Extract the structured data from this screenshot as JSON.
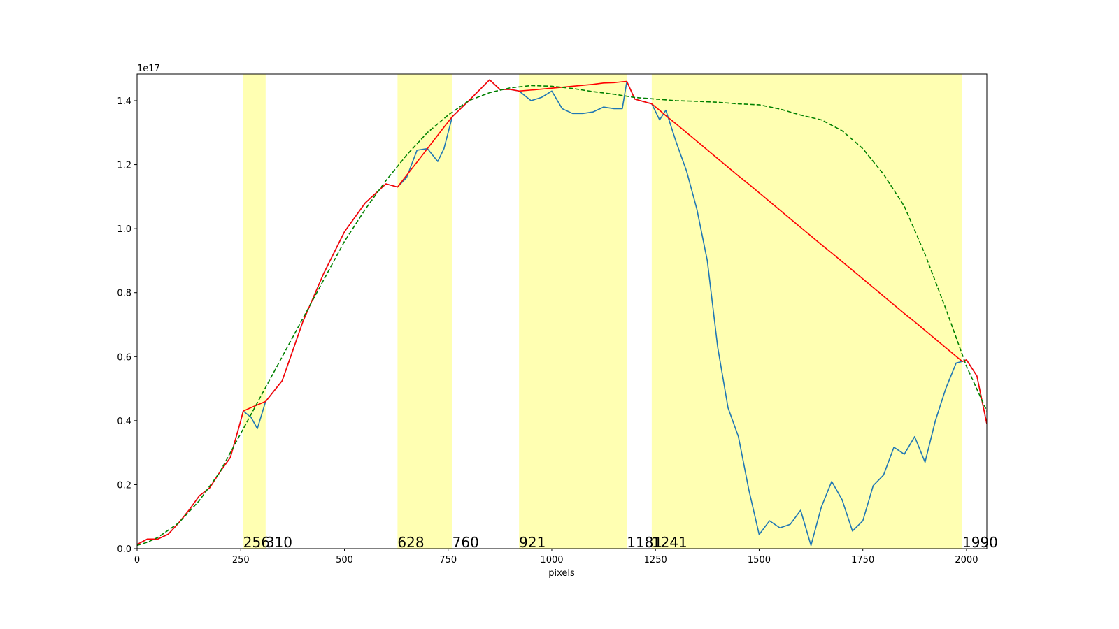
{
  "chart_data": {
    "type": "line",
    "xlabel": "pixels",
    "offset_label": "1e17",
    "xlim": [
      0,
      2049
    ],
    "ylim": [
      0,
      1.483
    ],
    "xticks": [
      0,
      250,
      500,
      750,
      1000,
      1250,
      1500,
      1750,
      2000
    ],
    "yticks": [
      {
        "value": 0,
        "label": "0.0"
      },
      0.2,
      0.4,
      0.6,
      0.8,
      {
        "value": 1,
        "label": "1.0"
      },
      1.2,
      1.4
    ],
    "span_color": "#ffff00",
    "spans": [
      [
        256,
        310
      ],
      [
        628,
        760
      ],
      [
        921,
        1181
      ],
      [
        1241,
        1990
      ]
    ],
    "series": [
      {
        "color": "#1f77b4",
        "dash": false,
        "x": [
          0,
          25,
          50,
          75,
          100,
          125,
          150,
          175,
          200,
          225,
          250,
          256,
          275,
          290,
          310,
          350,
          400,
          450,
          500,
          550,
          600,
          628,
          650,
          675,
          700,
          725,
          740,
          760,
          800,
          850,
          875,
          900,
          921,
          950,
          975,
          1000,
          1025,
          1050,
          1075,
          1100,
          1125,
          1150,
          1170,
          1181,
          1200,
          1241,
          1260,
          1275,
          1300,
          1325,
          1350,
          1375,
          1400,
          1425,
          1450,
          1475,
          1500,
          1525,
          1550,
          1575,
          1600,
          1625,
          1650,
          1675,
          1700,
          1725,
          1750,
          1775,
          1800,
          1825,
          1850,
          1875,
          1900,
          1925,
          1950,
          1975,
          1990,
          2000,
          2025,
          2049
        ],
        "values": [
          0.013,
          0.03,
          0.03,
          0.045,
          0.08,
          0.12,
          0.165,
          0.19,
          0.24,
          0.285,
          0.4,
          0.43,
          0.41,
          0.375,
          0.46,
          0.525,
          0.71,
          0.86,
          0.99,
          1.08,
          1.14,
          1.13,
          1.16,
          1.245,
          1.25,
          1.21,
          1.25,
          1.35,
          1.4,
          1.465,
          1.435,
          1.435,
          1.43,
          1.4,
          1.41,
          1.43,
          1.375,
          1.36,
          1.36,
          1.365,
          1.38,
          1.375,
          1.375,
          1.46,
          1.405,
          1.39,
          1.34,
          1.37,
          1.27,
          1.18,
          1.06,
          0.9,
          0.63,
          0.44,
          0.35,
          0.185,
          0.044,
          0.087,
          0.065,
          0.076,
          0.12,
          0.01,
          0.13,
          0.21,
          0.153,
          0.055,
          0.087,
          0.197,
          0.23,
          0.317,
          0.295,
          0.35,
          0.27,
          0.4,
          0.5,
          0.58,
          0.585,
          0.59,
          0.54,
          0.39
        ]
      },
      {
        "color": "#ff0000",
        "dash": false,
        "x": [
          0,
          25,
          50,
          75,
          100,
          125,
          150,
          175,
          200,
          225,
          250,
          256,
          275,
          290,
          310,
          350,
          400,
          450,
          500,
          550,
          600,
          628,
          650,
          675,
          700,
          725,
          740,
          760,
          800,
          850,
          875,
          900,
          921,
          950,
          975,
          1000,
          1025,
          1050,
          1075,
          1100,
          1125,
          1150,
          1170,
          1181,
          1200,
          1241,
          1260,
          1275,
          1300,
          1325,
          1350,
          1375,
          1400,
          1425,
          1450,
          1475,
          1500,
          1525,
          1550,
          1575,
          1600,
          1625,
          1650,
          1675,
          1700,
          1725,
          1750,
          1775,
          1800,
          1825,
          1850,
          1875,
          1900,
          1925,
          1950,
          1975,
          1990,
          2000,
          2025,
          2049
        ],
        "values": [
          0.013,
          0.03,
          0.03,
          0.045,
          0.08,
          0.12,
          0.165,
          0.19,
          0.24,
          0.285,
          0.4,
          0.43,
          0.441,
          0.449,
          0.46,
          0.525,
          0.71,
          0.86,
          0.99,
          1.08,
          1.14,
          1.13,
          1.167,
          1.208,
          1.25,
          1.292,
          1.317,
          1.35,
          1.4,
          1.465,
          1.435,
          1.435,
          1.43,
          1.433,
          1.436,
          1.439,
          1.442,
          1.445,
          1.448,
          1.451,
          1.455,
          1.456,
          1.459,
          1.46,
          1.405,
          1.39,
          1.37,
          1.353,
          1.327,
          1.3,
          1.273,
          1.246,
          1.219,
          1.192,
          1.165,
          1.139,
          1.112,
          1.085,
          1.058,
          1.031,
          1.004,
          0.977,
          0.95,
          0.924,
          0.897,
          0.87,
          0.843,
          0.816,
          0.789,
          0.762,
          0.735,
          0.709,
          0.682,
          0.655,
          0.628,
          0.601,
          0.585,
          0.59,
          0.54,
          0.39
        ]
      },
      {
        "color": "#008000",
        "dash": true,
        "x": [
          0,
          25,
          50,
          100,
          150,
          200,
          250,
          300,
          350,
          400,
          450,
          500,
          550,
          600,
          650,
          700,
          750,
          800,
          850,
          900,
          950,
          1000,
          1050,
          1100,
          1150,
          1200,
          1250,
          1300,
          1350,
          1400,
          1450,
          1500,
          1550,
          1600,
          1650,
          1700,
          1750,
          1800,
          1850,
          1900,
          1950,
          2000,
          2049
        ],
        "values": [
          0.01,
          0.02,
          0.035,
          0.08,
          0.15,
          0.24,
          0.36,
          0.48,
          0.6,
          0.72,
          0.84,
          0.96,
          1.06,
          1.15,
          1.23,
          1.3,
          1.355,
          1.4,
          1.425,
          1.44,
          1.447,
          1.445,
          1.438,
          1.428,
          1.42,
          1.41,
          1.405,
          1.4,
          1.398,
          1.395,
          1.39,
          1.387,
          1.374,
          1.355,
          1.34,
          1.306,
          1.25,
          1.17,
          1.07,
          0.92,
          0.75,
          0.57,
          0.43
        ]
      }
    ]
  }
}
